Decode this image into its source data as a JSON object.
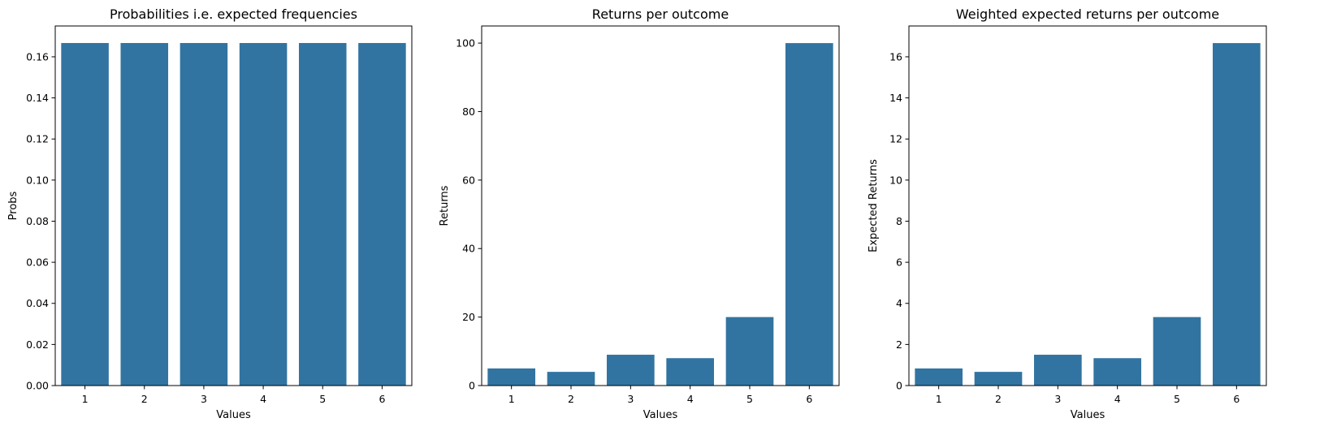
{
  "colors": {
    "bar": "#3274a1",
    "axis": "#000000",
    "background": "#ffffff"
  },
  "chart_data": [
    {
      "type": "bar",
      "title": "Probabilities i.e. expected frequencies",
      "xlabel": "Values",
      "ylabel": "Probs",
      "categories": [
        "1",
        "2",
        "3",
        "4",
        "5",
        "6"
      ],
      "values": [
        0.1667,
        0.1667,
        0.1667,
        0.1667,
        0.1667,
        0.1667
      ],
      "ylim": [
        0,
        0.175
      ],
      "yticks": [
        0,
        0.02,
        0.04,
        0.06,
        0.08,
        0.1,
        0.12,
        0.14,
        0.16
      ],
      "ytick_labels": [
        "0.00",
        "0.02",
        "0.04",
        "0.06",
        "0.08",
        "0.10",
        "0.12",
        "0.14",
        "0.16"
      ],
      "grid": false,
      "legend": "none"
    },
    {
      "type": "bar",
      "title": "Returns per outcome",
      "xlabel": "Values",
      "ylabel": "Returns",
      "categories": [
        "1",
        "2",
        "3",
        "4",
        "5",
        "6"
      ],
      "values": [
        5,
        4,
        9,
        8,
        20,
        100
      ],
      "ylim": [
        0,
        105
      ],
      "yticks": [
        0,
        20,
        40,
        60,
        80,
        100
      ],
      "ytick_labels": [
        "0",
        "20",
        "40",
        "60",
        "80",
        "100"
      ],
      "grid": false,
      "legend": "none"
    },
    {
      "type": "bar",
      "title": "Weighted expected returns per outcome",
      "xlabel": "Values",
      "ylabel": "Expected Returns",
      "categories": [
        "1",
        "2",
        "3",
        "4",
        "5",
        "6"
      ],
      "values": [
        0.833,
        0.667,
        1.5,
        1.333,
        3.333,
        16.667
      ],
      "ylim": [
        0,
        17.5
      ],
      "yticks": [
        0,
        2,
        4,
        6,
        8,
        10,
        12,
        14,
        16
      ],
      "ytick_labels": [
        "0",
        "2",
        "4",
        "6",
        "8",
        "10",
        "12",
        "14",
        "16"
      ],
      "grid": false,
      "legend": "none"
    }
  ]
}
